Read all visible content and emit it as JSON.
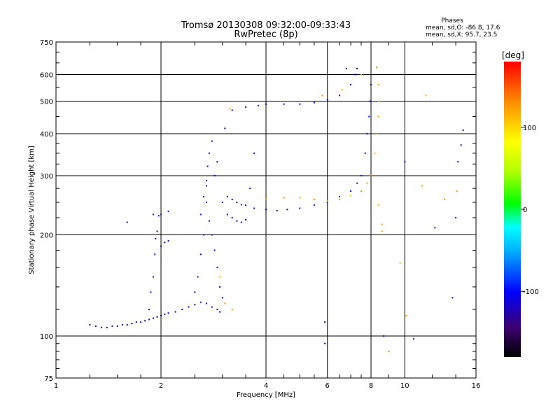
{
  "chart_data": {
    "type": "scatter",
    "title": "Tromsø 20130308 09:32:00-09:33:43",
    "subtitle": "RwPretec (8p)",
    "xlabel": "Frequency [MHz]",
    "ylabel": "Stationary phase Virtual Height [km]",
    "x_scale": "log",
    "y_scale": "log",
    "xlim": [
      1,
      16
    ],
    "ylim": [
      75,
      750
    ],
    "x_ticks": [
      1,
      2,
      4,
      6,
      8,
      10,
      16
    ],
    "y_ticks": [
      75,
      100,
      200,
      300,
      400,
      500,
      600,
      750
    ],
    "grid": true,
    "stats": {
      "heading": "Phases",
      "line_o": "mean, sd,O: -86.8, 17.6",
      "line_x": "mean, sd,X:  95.7, 23.5"
    },
    "colorbar": {
      "label": "[deg]",
      "range": [
        -180,
        180
      ],
      "ticks": [
        100,
        0,
        -100
      ],
      "placement": "right"
    },
    "series": [
      {
        "points": [
          [
            1.25,
            108,
            -120
          ],
          [
            1.3,
            107,
            -118
          ],
          [
            1.35,
            106,
            -122
          ],
          [
            1.4,
            106,
            -115
          ],
          [
            1.45,
            107,
            -118
          ],
          [
            1.5,
            107,
            -110
          ],
          [
            1.55,
            108,
            -112
          ],
          [
            1.6,
            108,
            -116
          ],
          [
            1.65,
            109,
            -110
          ],
          [
            1.7,
            110,
            -108
          ],
          [
            1.75,
            110,
            -112
          ],
          [
            1.8,
            111,
            -115
          ],
          [
            1.85,
            112,
            -105
          ],
          [
            1.9,
            113,
            -110
          ],
          [
            1.95,
            114,
            -112
          ],
          [
            2.0,
            115,
            -106
          ],
          [
            2.05,
            116,
            -110
          ],
          [
            2.1,
            117,
            -104
          ],
          [
            2.2,
            118,
            -108
          ],
          [
            2.3,
            120,
            -112
          ],
          [
            2.4,
            122,
            -100
          ],
          [
            2.5,
            124,
            -106
          ],
          [
            2.6,
            126,
            -95
          ],
          [
            2.7,
            125,
            -102
          ],
          [
            2.8,
            122,
            -98
          ],
          [
            2.9,
            120,
            -104
          ],
          [
            2.95,
            118,
            -110
          ],
          [
            1.85,
            120,
            -100
          ],
          [
            1.87,
            135,
            -105
          ],
          [
            1.9,
            150,
            -100
          ],
          [
            1.92,
            175,
            -95
          ],
          [
            1.93,
            195,
            -102
          ],
          [
            1.95,
            205,
            -98
          ],
          [
            2.0,
            185,
            -96
          ],
          [
            2.05,
            190,
            -104
          ],
          [
            2.1,
            192,
            -100
          ],
          [
            1.97,
            228,
            -95
          ],
          [
            2.0,
            230,
            -90
          ],
          [
            2.5,
            135,
            -100
          ],
          [
            2.55,
            150,
            -105
          ],
          [
            2.6,
            175,
            -110
          ],
          [
            2.65,
            200,
            -100
          ],
          [
            2.6,
            230,
            -95
          ],
          [
            2.65,
            260,
            -100
          ],
          [
            2.7,
            290,
            -105
          ],
          [
            2.72,
            320,
            -98
          ],
          [
            2.75,
            350,
            -110
          ],
          [
            2.8,
            380,
            -105
          ],
          [
            2.85,
            300,
            -100
          ],
          [
            2.7,
            250,
            -96
          ],
          [
            2.75,
            220,
            -102
          ],
          [
            2.8,
            200,
            -106
          ],
          [
            2.85,
            180,
            -100
          ],
          [
            2.9,
            160,
            -98
          ],
          [
            2.95,
            140,
            -102
          ],
          [
            3.0,
            130,
            -100
          ],
          [
            3.0,
            250,
            -110
          ],
          [
            3.1,
            230,
            -115
          ],
          [
            3.2,
            225,
            -108
          ],
          [
            3.3,
            220,
            -112
          ],
          [
            3.4,
            218,
            -115
          ],
          [
            3.5,
            222,
            -110
          ],
          [
            3.1,
            260,
            -125
          ],
          [
            3.2,
            255,
            -130
          ],
          [
            3.3,
            250,
            -128
          ],
          [
            3.4,
            246,
            -124
          ],
          [
            3.5,
            245,
            -122
          ],
          [
            3.7,
            240,
            -112
          ],
          [
            4.0,
            238,
            -110
          ],
          [
            4.3,
            236,
            -108
          ],
          [
            4.6,
            238,
            -112
          ],
          [
            5.0,
            240,
            -110
          ],
          [
            5.5,
            245,
            -105
          ],
          [
            6.0,
            250,
            -108
          ],
          [
            6.5,
            260,
            -104
          ],
          [
            7.0,
            270,
            -100
          ],
          [
            7.3,
            285,
            -106
          ],
          [
            7.5,
            300,
            -98
          ],
          [
            7.7,
            350,
            -104
          ],
          [
            7.8,
            400,
            -100
          ],
          [
            7.9,
            450,
            -98
          ],
          [
            7.95,
            500,
            -106
          ],
          [
            8.0,
            560,
            -102
          ],
          [
            3.6,
            275,
            -104
          ],
          [
            4.0,
            255,
            130
          ],
          [
            4.5,
            258,
            135
          ],
          [
            5.0,
            258,
            125
          ],
          [
            5.5,
            255,
            130
          ],
          [
            6.0,
            252,
            120
          ],
          [
            6.5,
            255,
            128
          ],
          [
            7.0,
            262,
            110
          ],
          [
            7.5,
            270,
            130
          ],
          [
            7.8,
            285,
            125
          ],
          [
            8.0,
            300,
            140
          ],
          [
            8.2,
            350,
            120
          ],
          [
            8.3,
            400,
            130
          ],
          [
            8.4,
            450,
            125
          ],
          [
            8.45,
            500,
            115
          ],
          [
            8.4,
            560,
            120
          ],
          [
            8.3,
            630,
            135
          ],
          [
            3.2,
            470,
            -108
          ],
          [
            3.5,
            480,
            -110
          ],
          [
            3.8,
            485,
            -106
          ],
          [
            4.0,
            490,
            -112
          ],
          [
            4.5,
            490,
            -108
          ],
          [
            5.0,
            490,
            -110
          ],
          [
            5.5,
            495,
            -104
          ],
          [
            6.0,
            505,
            -102
          ],
          [
            6.5,
            520,
            -100
          ],
          [
            7.0,
            560,
            -96
          ],
          [
            7.2,
            600,
            -104
          ],
          [
            7.3,
            625,
            -100
          ],
          [
            3.15,
            475,
            120
          ],
          [
            5.8,
            520,
            130
          ],
          [
            6.6,
            540,
            120
          ],
          [
            7.5,
            600,
            110
          ],
          [
            2.7,
            280,
            -140
          ],
          [
            2.9,
            330,
            -150
          ],
          [
            3.05,
            415,
            -135
          ],
          [
            3.7,
            350,
            -120
          ],
          [
            2.95,
            150,
            115
          ],
          [
            3.05,
            125,
            130
          ],
          [
            3.2,
            120,
            125
          ],
          [
            1.6,
            218,
            -110
          ],
          [
            1.9,
            230,
            -100
          ],
          [
            2.1,
            235,
            -102
          ],
          [
            5.9,
            110,
            -100
          ],
          [
            5.9,
            95,
            -100
          ],
          [
            8.6,
            205,
            130
          ],
          [
            8.7,
            100,
            -130
          ],
          [
            9.7,
            165,
            120
          ],
          [
            10.0,
            330,
            -110
          ],
          [
            10.1,
            115,
            130
          ],
          [
            10.6,
            98,
            -115
          ],
          [
            11.2,
            280,
            130
          ],
          [
            11.5,
            520,
            125
          ],
          [
            12.2,
            210,
            -110
          ],
          [
            13.0,
            255,
            130
          ],
          [
            14.0,
            225,
            -105
          ],
          [
            14.1,
            270,
            125
          ],
          [
            14.2,
            330,
            -120
          ],
          [
            14.5,
            370,
            -112
          ],
          [
            14.7,
            410,
            -110
          ],
          [
            13.7,
            130,
            -100
          ],
          [
            9.0,
            90,
            135
          ],
          [
            8.4,
            245,
            120
          ],
          [
            8.6,
            215,
            125
          ],
          [
            6.8,
            625,
            -100
          ]
        ]
      }
    ]
  }
}
